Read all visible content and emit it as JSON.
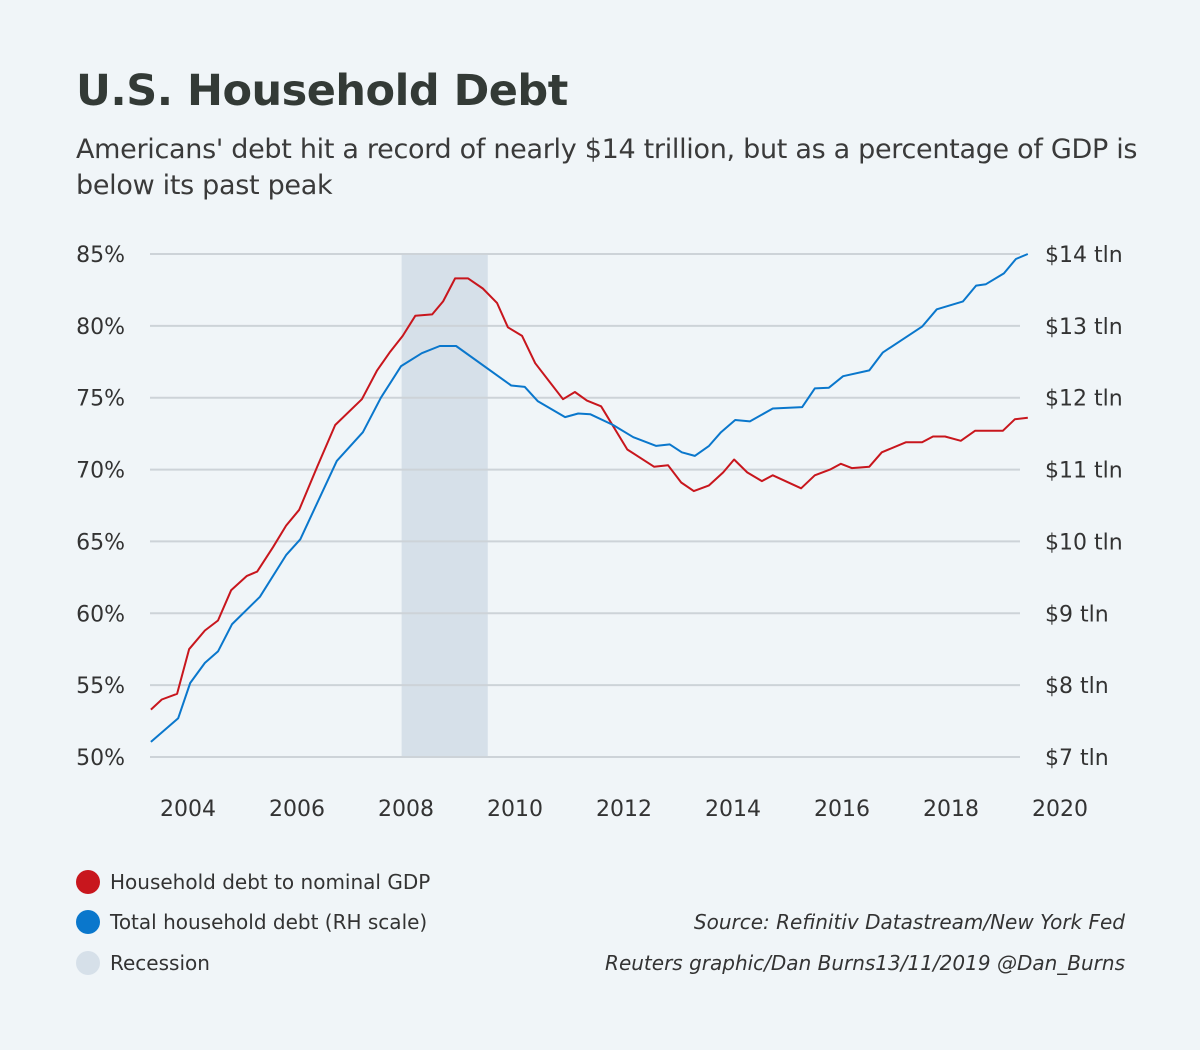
{
  "chart_data": {
    "type": "line",
    "title": "U.S. Household Debt",
    "subtitle": "Americans' debt hit a record of nearly $14 trillion, but as a percentage of GDP is below its past peak",
    "x_ticks": [
      "2004",
      "2006",
      "2008",
      "2010",
      "2012",
      "2014",
      "2016",
      "2018",
      "2020"
    ],
    "xlim": [
      2003.3,
      2020
    ],
    "y_left": {
      "ticks": [
        "50%",
        "55%",
        "60%",
        "65%",
        "70%",
        "75%",
        "80%",
        "85%"
      ],
      "ylim": [
        50,
        85
      ]
    },
    "y_right": {
      "ticks": [
        "$7 tln",
        "$8 tln",
        "$9 tln",
        "$10 tln",
        "$11 tln",
        "$12 tln",
        "$13 tln",
        "$14 tln"
      ],
      "ylim": [
        7,
        14
      ]
    },
    "grid": true,
    "legend_position": "bottom-left",
    "recession": {
      "name": "Recession",
      "start": 2007.92,
      "end": 2009.5,
      "color": "#d6e0e9"
    },
    "series": [
      {
        "name": "Household debt to nominal GDP",
        "axis": "left",
        "color": "#c8161d",
        "x": [
          2003.32,
          2003.52,
          2003.8,
          2004.02,
          2004.31,
          2004.55,
          2004.79,
          2005.08,
          2005.27,
          2005.56,
          2005.8,
          2006.04,
          2006.37,
          2006.7,
          2007.19,
          2007.47,
          2007.71,
          2007.94,
          2008.17,
          2008.48,
          2008.68,
          2008.9,
          2009.14,
          2009.41,
          2009.67,
          2009.87,
          2010.13,
          2010.37,
          2010.88,
          2011.1,
          2011.32,
          2011.58,
          2012.06,
          2012.55,
          2012.81,
          2013.05,
          2013.28,
          2013.56,
          2013.82,
          2014.02,
          2014.26,
          2014.53,
          2014.73,
          2015.25,
          2015.5,
          2015.78,
          2015.98,
          2016.18,
          2016.5,
          2016.73,
          2017.17,
          2017.47,
          2017.67,
          2017.89,
          2018.18,
          2018.44,
          2018.95,
          2019.17,
          2019.41
        ],
        "y": [
          53.3,
          54.0,
          54.4,
          57.5,
          58.8,
          59.5,
          61.6,
          62.6,
          62.9,
          64.6,
          66.1,
          67.2,
          70.2,
          73.1,
          74.9,
          76.9,
          78.2,
          79.3,
          80.7,
          80.8,
          81.7,
          83.3,
          83.3,
          82.6,
          81.6,
          79.9,
          79.3,
          77.4,
          74.9,
          75.4,
          74.8,
          74.4,
          71.4,
          70.2,
          70.3,
          69.1,
          68.5,
          68.9,
          69.8,
          70.7,
          69.8,
          69.2,
          69.6,
          68.7,
          69.6,
          70.0,
          70.4,
          70.1,
          70.2,
          71.2,
          71.9,
          71.9,
          72.3,
          72.3,
          72.0,
          72.7,
          72.7,
          73.5,
          73.6
        ]
      },
      {
        "name": "Total household debt (RH scale)",
        "axis": "right",
        "color": "#0a77cc",
        "x": [
          2003.32,
          2003.82,
          2004.04,
          2004.31,
          2004.55,
          2004.81,
          2005.32,
          2005.8,
          2006.06,
          2006.73,
          2007.21,
          2007.54,
          2007.91,
          2008.29,
          2008.62,
          2008.92,
          2009.93,
          2010.18,
          2010.42,
          2010.92,
          2011.16,
          2011.38,
          2011.8,
          2012.17,
          2012.59,
          2012.84,
          2013.06,
          2013.3,
          2013.56,
          2013.78,
          2014.04,
          2014.31,
          2014.73,
          2015.27,
          2015.5,
          2015.76,
          2016.02,
          2016.5,
          2016.75,
          2017.47,
          2017.74,
          2018.22,
          2018.46,
          2018.64,
          2018.97,
          2019.19,
          2019.41
        ],
        "y": [
          7.21,
          7.54,
          8.03,
          8.31,
          8.47,
          8.85,
          9.23,
          9.81,
          10.03,
          11.12,
          11.52,
          12.0,
          12.44,
          12.62,
          12.72,
          12.72,
          12.17,
          12.15,
          11.95,
          11.73,
          11.78,
          11.77,
          11.62,
          11.45,
          11.33,
          11.35,
          11.24,
          11.19,
          11.33,
          11.52,
          11.69,
          11.67,
          11.85,
          11.87,
          12.13,
          12.14,
          12.3,
          12.38,
          12.63,
          12.99,
          13.23,
          13.34,
          13.56,
          13.58,
          13.73,
          13.93,
          14.0
        ]
      }
    ]
  },
  "footer": {
    "source": "Source: Refinitiv Datastream/New York Fed",
    "credit": "Reuters graphic/Dan Burns13/11/2019 @Dan_Burns"
  }
}
